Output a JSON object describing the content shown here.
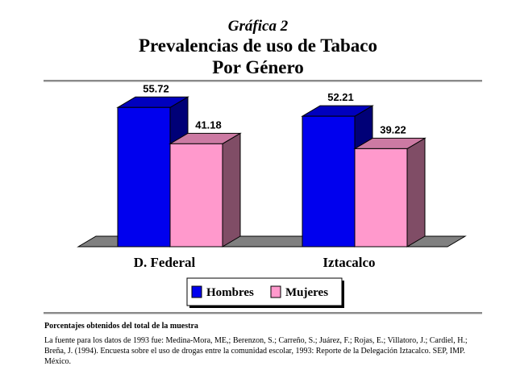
{
  "header": {
    "kicker": "Gráfica 2",
    "title_line1": "Prevalencias de uso de Tabaco",
    "title_line2": "Por Género"
  },
  "chart_data": {
    "type": "bar",
    "categories": [
      "D. Federal",
      "Iztacalco"
    ],
    "series": [
      {
        "name": "Hombres",
        "values": [
          55.72,
          52.21
        ],
        "color": "#0000ee"
      },
      {
        "name": "Mujeres",
        "values": [
          41.18,
          39.22
        ],
        "color": "#ff99cc"
      }
    ],
    "value_labels": [
      [
        "55.72",
        "52.21"
      ],
      [
        "41.18",
        "39.22"
      ]
    ],
    "ylim": [
      0,
      60
    ],
    "grid": false,
    "legend": "bottom-center",
    "three_d": true
  },
  "footer": {
    "note_title": "Porcentajes obtenidos del total de la muestra",
    "source": "La fuente para los datos de 1993 fue: Medina-Mora, ME,; Berenzon, S.; Carreño, S.; Juárez, F.; Rojas, E.; Villatoro, J.; Cardiel, H.; Breña, J. (1994). Encuesta sobre el uso de drogas entre la comunidad escolar, 1993: Reporte de la Delegación Iztacalco. SEP, IMP. México."
  }
}
